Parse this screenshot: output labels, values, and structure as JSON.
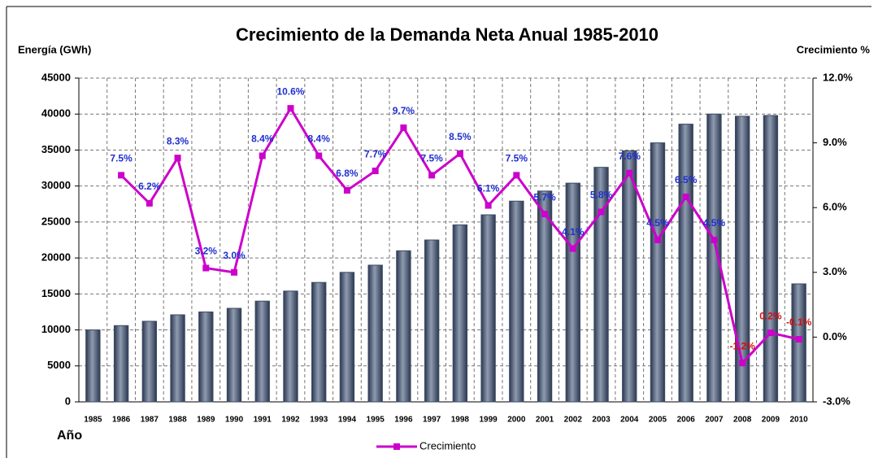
{
  "chart_data": {
    "type": "bar+line",
    "title": "Crecimiento de la Demanda Neta Anual  1985-2010",
    "y_label": "Energía (GWh)",
    "y2_label": "Crecimiento %",
    "x_label": "Año",
    "categories": [
      "1985",
      "1986",
      "1987",
      "1988",
      "1989",
      "1990",
      "1991",
      "1992",
      "1993",
      "1994",
      "1995",
      "1996",
      "1997",
      "1998",
      "1999",
      "2000",
      "2001",
      "2002",
      "2003",
      "2004",
      "2005",
      "2006",
      "2007",
      "2008",
      "2009",
      "2010"
    ],
    "series": [
      {
        "type": "bar",
        "color": "#3b4a63",
        "values": [
          10000,
          10600,
          11200,
          12100,
          12500,
          13000,
          14000,
          15400,
          16600,
          18000,
          19000,
          21000,
          22500,
          24600,
          26000,
          27900,
          29300,
          30400,
          32600,
          34900,
          36000,
          38600,
          40000,
          39700,
          39800,
          16400
        ]
      },
      {
        "type": "line",
        "name": "Crecimiento",
        "color": "#cc00cc",
        "axis": "y2",
        "values": [
          null,
          7.5,
          6.2,
          8.3,
          3.2,
          3.0,
          8.4,
          10.6,
          8.4,
          6.8,
          7.7,
          9.7,
          7.5,
          8.5,
          6.1,
          7.5,
          5.7,
          4.1,
          5.8,
          7.6,
          4.5,
          6.5,
          4.5,
          -1.2,
          0.2,
          -0.1
        ],
        "value_labels": [
          null,
          "7.5%",
          "6.2%",
          "8.3%",
          "3.2%",
          "3.0%",
          "8.4%",
          "10.6%",
          "8.4%",
          "6.8%",
          "7.7%",
          "9.7%",
          "7.5%",
          "8.5%",
          "6.1%",
          "7.5%",
          "5.7%",
          "4.1%",
          "5.8%",
          "7.6%",
          "4.5%",
          "6.5%",
          "4.5%",
          "-1.2%",
          "0.2%",
          "-0.1%"
        ],
        "value_label_colors": [
          null,
          "#1f2fd0",
          "#1f2fd0",
          "#1f2fd0",
          "#1f2fd0",
          "#1f2fd0",
          "#1f2fd0",
          "#1f2fd0",
          "#1f2fd0",
          "#1f2fd0",
          "#1f2fd0",
          "#1f2fd0",
          "#1f2fd0",
          "#1f2fd0",
          "#1f2fd0",
          "#1f2fd0",
          "#1f2fd0",
          "#1f2fd0",
          "#1f2fd0",
          "#1f2fd0",
          "#1f2fd0",
          "#1f2fd0",
          "#1f2fd0",
          "#d01010",
          "#d01010",
          "#d01010"
        ]
      }
    ],
    "ylim": [
      0,
      45000
    ],
    "yticks": [
      0,
      5000,
      10000,
      15000,
      20000,
      25000,
      30000,
      35000,
      40000,
      45000
    ],
    "y2lim": [
      -3,
      12
    ],
    "y2ticks": [
      {
        "value": -3,
        "label": "-3.0%"
      },
      {
        "value": 0,
        "label": "0.0%"
      },
      {
        "value": 3,
        "label": "3.0%"
      },
      {
        "value": 6,
        "label": "6.0%"
      },
      {
        "value": 9,
        "label": "9.0%"
      },
      {
        "value": 12,
        "label": "12.0%"
      }
    ],
    "grid": true,
    "legend": "bottom"
  }
}
